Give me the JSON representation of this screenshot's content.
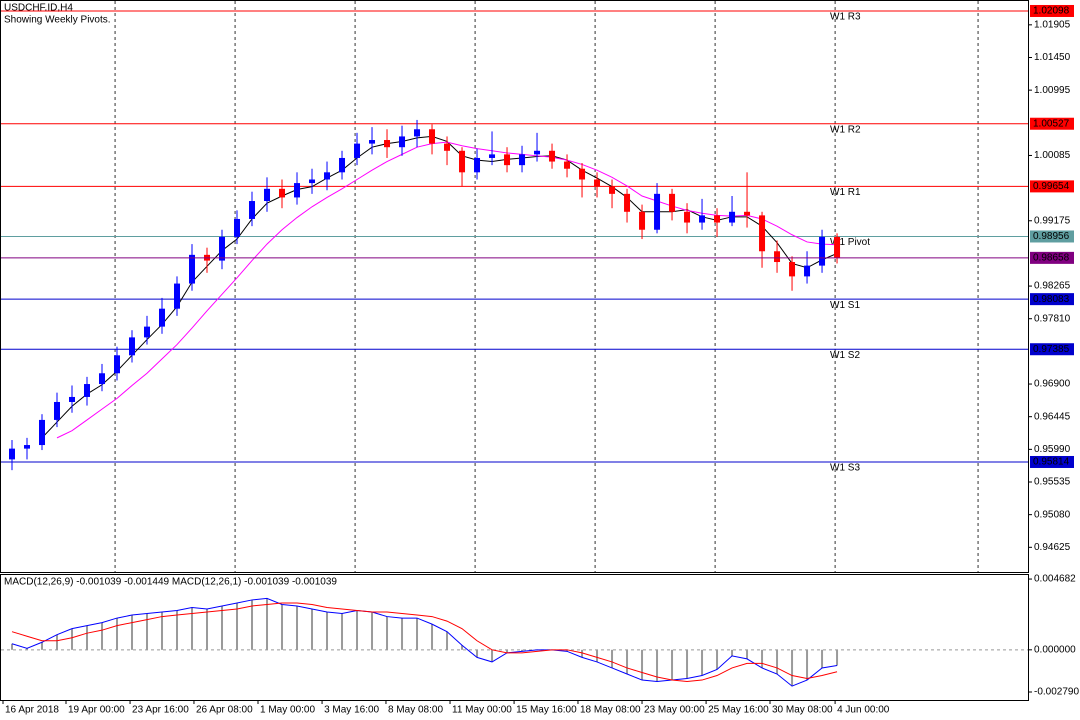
{
  "chart_data": [
    {
      "type": "candlestick",
      "title": "USDCHF.ID,H4",
      "subtitle": "Showing Weekly Pivots.",
      "xlim": [
        -0.8,
        67.73
      ],
      "xticks": [
        {
          "value": -0.6,
          "label": "16 Apr 2018"
        },
        {
          "value": 3.6,
          "label": "19 Apr 00:00"
        },
        {
          "value": 7.87,
          "label": "23 Apr 16:00"
        },
        {
          "value": 12.13,
          "label": "26 Apr 08:00"
        },
        {
          "value": 16.4,
          "label": "1 May 00:00"
        },
        {
          "value": 20.67,
          "label": "3 May 16:00"
        },
        {
          "value": 24.93,
          "label": "8 May 08:00"
        },
        {
          "value": 29.2,
          "label": "11 May 00:00"
        },
        {
          "value": 33.47,
          "label": "15 May 16:00"
        },
        {
          "value": 37.73,
          "label": "18 May 08:00"
        },
        {
          "value": 42,
          "label": "23 May 00:00"
        },
        {
          "value": 46.27,
          "label": "25 May 16:00"
        },
        {
          "value": 50.53,
          "label": "30 May 08:00"
        },
        {
          "value": 54.87,
          "label": "4 Jun 00:00"
        }
      ],
      "xgrid": [
        6.87,
        14.87,
        22.87,
        30.87,
        38.87,
        46.87,
        54.87,
        64.4
      ],
      "ylim": [
        0.94281,
        1.02251
      ],
      "yticks": [
        1.01905,
        {
          "value": 1.0145,
          "label": "1.01450"
        },
        1.00995,
        1.00085,
        0.99175,
        0.98265,
        {
          "value": 0.9781,
          "label": "0.97810"
        },
        {
          "value": 0.969,
          "label": "0.96900"
        },
        0.96445,
        {
          "value": 0.9599,
          "label": "0.95990"
        },
        0.95535,
        {
          "value": 0.9508,
          "label": "0.95080"
        },
        0.94625
      ],
      "up_color": "#0000ff",
      "down_color": "#ff0000",
      "open": [
        0.9585,
        0.96,
        0.9605,
        0.964,
        0.9665,
        0.9672,
        0.969,
        0.9705,
        0.973,
        0.9755,
        0.977,
        0.9795,
        0.983,
        0.987,
        0.9862,
        0.9895,
        0.992,
        0.9945,
        0.9962,
        0.995,
        0.997,
        0.9975,
        0.9985,
        1.0005,
        1.0025,
        1.003,
        1.002,
        1.0035,
        1.0045,
        1.0025,
        1.0015,
        0.9985,
        1.0005,
        1.001,
        0.9995,
        1.001,
        1.0015,
        1.0,
        0.999,
        0.9975,
        0.9965,
        0.9955,
        0.993,
        0.9905,
        0.9955,
        0.993,
        0.9915,
        0.9925,
        0.9915,
        0.993,
        0.9925,
        0.9875,
        0.986,
        0.984,
        0.9855,
        0.9895
      ],
      "high": [
        0.9612,
        0.9615,
        0.9648,
        0.9678,
        0.9688,
        0.97,
        0.9718,
        0.9742,
        0.9765,
        0.9785,
        0.981,
        0.984,
        0.9885,
        0.988,
        0.9905,
        0.9932,
        0.9958,
        0.9978,
        0.9975,
        0.9985,
        0.999,
        1.0,
        1.0015,
        1.004,
        1.0048,
        1.0045,
        1.005,
        1.0058,
        1.0052,
        1.0035,
        1.002,
        1.0018,
        1.0042,
        1.002,
        1.0022,
        1.004,
        1.0025,
        1.001,
        0.9998,
        0.9985,
        0.9975,
        0.9962,
        0.994,
        0.997,
        0.9962,
        0.9942,
        0.9948,
        0.9935,
        0.9952,
        0.9985,
        0.993,
        0.989,
        0.9868,
        0.9875,
        0.9905,
        0.99
      ],
      "low": [
        0.957,
        0.9585,
        0.9598,
        0.963,
        0.965,
        0.966,
        0.968,
        0.9695,
        0.972,
        0.9745,
        0.976,
        0.9785,
        0.982,
        0.9845,
        0.985,
        0.9885,
        0.991,
        0.993,
        0.9935,
        0.994,
        0.9955,
        0.996,
        0.9975,
        0.9995,
        1.001,
        1.0005,
        1.0008,
        1.002,
        1.001,
        0.9995,
        0.9965,
        0.9975,
        0.9995,
        0.9985,
        0.9985,
        1.0,
        0.999,
        0.9978,
        0.995,
        0.995,
        0.9935,
        0.9915,
        0.9892,
        0.99,
        0.9918,
        0.99,
        0.9905,
        0.9895,
        0.991,
        0.9908,
        0.9852,
        0.9845,
        0.982,
        0.983,
        0.9845,
        0.9858
      ],
      "close": [
        0.96,
        0.9605,
        0.964,
        0.9665,
        0.9672,
        0.969,
        0.9705,
        0.973,
        0.9755,
        0.977,
        0.9795,
        0.983,
        0.987,
        0.9862,
        0.9895,
        0.992,
        0.9945,
        0.9962,
        0.995,
        0.997,
        0.9975,
        0.9985,
        1.0005,
        1.0025,
        1.003,
        1.002,
        1.0035,
        1.0045,
        1.0025,
        1.0015,
        0.9985,
        1.0005,
        1.001,
        0.9995,
        1.001,
        1.0015,
        1.0,
        0.999,
        0.9975,
        0.9965,
        0.9955,
        0.993,
        0.9905,
        0.9955,
        0.993,
        0.9915,
        0.9925,
        0.9915,
        0.993,
        0.9925,
        0.9875,
        0.986,
        0.984,
        0.9855,
        0.9895,
        0.98658
      ],
      "lines": [
        {
          "color": "#000000",
          "values": [
            null,
            null,
            0.9615,
            0.9637,
            0.9659,
            0.9676,
            0.9689,
            0.9708,
            0.973,
            0.9752,
            0.9773,
            0.9798,
            0.9832,
            0.9854,
            0.9876,
            0.9892,
            0.992,
            0.9942,
            0.9952,
            0.9961,
            0.9965,
            0.9977,
            0.9988,
            1.0005,
            1.002,
            1.0025,
            1.0028,
            1.0033,
            1.0035,
            1.0028,
            1.0008,
            1.0002,
            1.0,
            1.0003,
            1.0005,
            1.0007,
            1.0008,
            1.0002,
            0.9988,
            0.9977,
            0.9965,
            0.995,
            0.993,
            0.993,
            0.993,
            0.9933,
            0.9923,
            0.9918,
            0.9923,
            0.9923,
            0.991,
            0.9887,
            0.9858,
            0.9852,
            0.9863,
            0.9872
          ]
        },
        {
          "color": "#ff00ff",
          "values": [
            null,
            null,
            null,
            0.9615,
            0.9625,
            0.964,
            0.9655,
            0.967,
            0.9688,
            0.9705,
            0.9725,
            0.9745,
            0.9768,
            0.9792,
            0.9815,
            0.9838,
            0.9862,
            0.9885,
            0.9905,
            0.9922,
            0.9937,
            0.995,
            0.9962,
            0.9975,
            0.9988,
            1.0,
            1.001,
            1.002,
            1.0025,
            1.0027,
            1.0022,
            1.0018,
            1.0015,
            1.0012,
            1.001,
            1.0008,
            1.0006,
            1.0002,
            0.9996,
            0.9988,
            0.9978,
            0.9966,
            0.9952,
            0.9945,
            0.9938,
            0.9932,
            0.9928,
            0.9925,
            0.9924,
            0.9925,
            0.992,
            0.991,
            0.9898,
            0.9888,
            0.9885,
            0.9884
          ]
        }
      ],
      "levels": [
        {
          "name": "W1 R3",
          "value": 1.02098,
          "color": "#ff0000"
        },
        {
          "name": "W1 R2",
          "value": 1.00527,
          "color": "#ff0000"
        },
        {
          "name": "W1 R1",
          "value": 0.99654,
          "color": "#ff0000"
        },
        {
          "name": "W1 Pivot",
          "value": 0.98956,
          "color": "#5f9ea0"
        },
        {
          "name": "W1 S1",
          "value": 0.98083,
          "color": "#0000cd"
        },
        {
          "name": "W1 S2",
          "value": 0.97385,
          "color": "#0000cd"
        },
        {
          "name": "W1 S3",
          "value": 0.95814,
          "color": "#0000cd"
        }
      ],
      "last_color": "#800080"
    },
    {
      "type": "macd",
      "title": "MACD(12,26,9) -0.001039 -0.001449 MACD(12,26,1) -0.001039 -0.001039",
      "ylim": [
        -0.00332,
        0.00495
      ],
      "yticks": [
        0.004682,
        {
          "value": 0,
          "label": "0.000000"
        },
        {
          "value": -0.00279,
          "label": "-0.002790"
        }
      ],
      "histogram": {
        "color": "#9a9a9a",
        "line_color": "#0000ff",
        "values": [
          0.0004,
          0.0001,
          0.0005,
          0.001,
          0.0014,
          0.0016,
          0.0018,
          0.0021,
          0.0023,
          0.0024,
          0.0025,
          0.0026,
          0.0028,
          0.0027,
          0.0029,
          0.0031,
          0.0033,
          0.0034,
          0.003,
          0.0029,
          0.0027,
          0.0025,
          0.0024,
          0.0026,
          0.0025,
          0.0022,
          0.0021,
          0.0021,
          0.0017,
          0.0012,
          0.0003,
          -0.0005,
          -0.0008,
          -0.0002,
          -0.0001,
          0,
          0,
          -0.0001,
          -0.0005,
          -0.0008,
          -0.0012,
          -0.0016,
          -0.002,
          -0.0021,
          -0.002,
          -0.0019,
          -0.0017,
          -0.0013,
          -0.0004,
          -0.0006,
          -0.0012,
          -0.0016,
          -0.0024,
          -0.002,
          -0.0012,
          -0.001039
        ]
      },
      "signal": {
        "color": "#ff0000",
        "values": [
          0.0012,
          0.0009,
          0.0006,
          0.0006,
          0.0008,
          0.0011,
          0.0013,
          0.0016,
          0.0018,
          0.002,
          0.0022,
          0.0023,
          0.0024,
          0.0025,
          0.0026,
          0.0027,
          0.0029,
          0.003,
          0.0031,
          0.0031,
          0.003,
          0.0028,
          0.0027,
          0.0026,
          0.0025,
          0.0025,
          0.0024,
          0.0023,
          0.0022,
          0.0019,
          0.0014,
          0.0006,
          0,
          -0.0002,
          -0.0002,
          -0.0001,
          0,
          0,
          -0.0002,
          -0.0005,
          -0.0008,
          -0.0012,
          -0.0015,
          -0.0018,
          -0.002,
          -0.0021,
          -0.002,
          -0.0017,
          -0.0012,
          -0.0009,
          -0.0009,
          -0.0012,
          -0.0017,
          -0.0019,
          -0.0017,
          -0.001449
        ]
      }
    }
  ]
}
